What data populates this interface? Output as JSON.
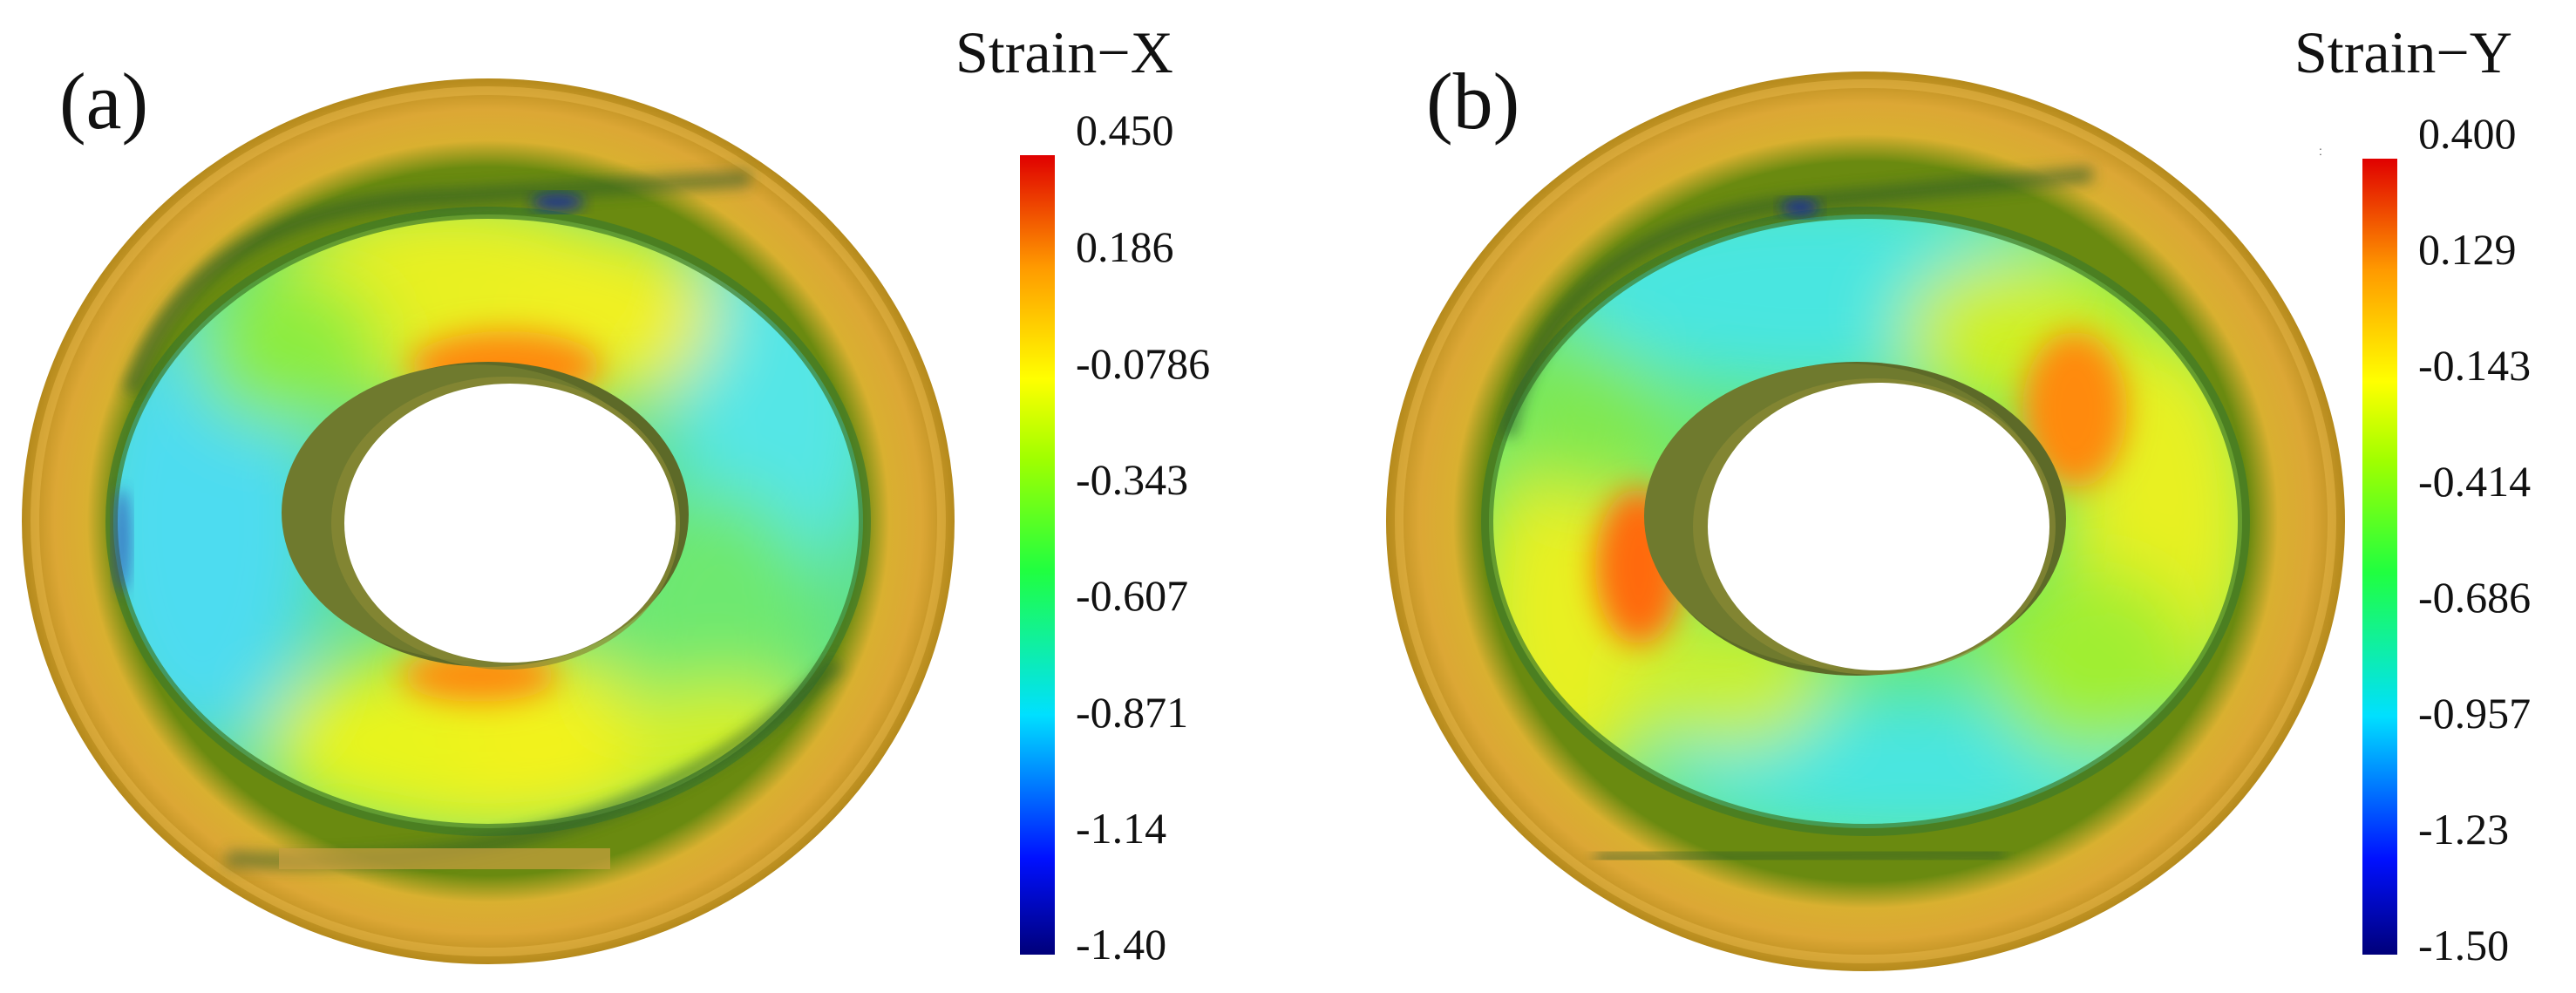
{
  "panels": [
    {
      "label": "(a)",
      "colorbar": {
        "title": "Strain−X",
        "ticks": [
          "0.450",
          "0.186",
          "-0.0786",
          "-0.343",
          "-0.607",
          "-0.871",
          "-1.14",
          "-1.40"
        ],
        "max": 0.45,
        "min": -1.4
      }
    },
    {
      "label": "(b)",
      "colorbar": {
        "title": "Strain−Y",
        "ticks": [
          "0.400",
          "0.129",
          "-0.143",
          "-0.414",
          "-0.686",
          "-0.957",
          "-1.23",
          "-1.50"
        ],
        "max": 0.4,
        "min": -1.5
      }
    }
  ],
  "colormap": [
    "#000080",
    "#0000ff",
    "#00bfff",
    "#00ff80",
    "#80ff00",
    "#ffff00",
    "#ffa500",
    "#ff3000",
    "#cc0000"
  ]
}
